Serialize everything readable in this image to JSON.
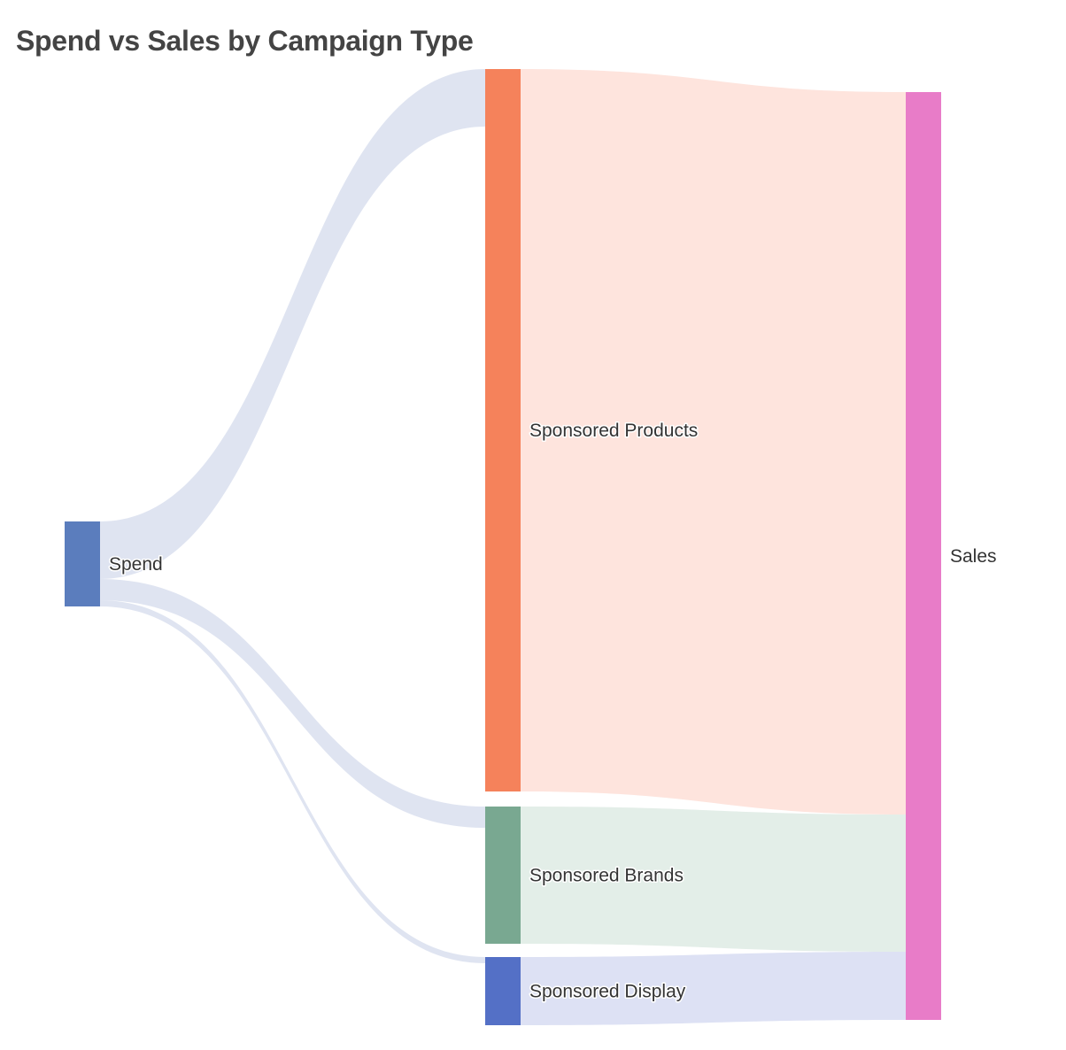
{
  "chart_data": {
    "type": "sankey",
    "title": "Spend vs Sales by Campaign Type",
    "nodes": [
      {
        "id": "spend",
        "label": "Spend",
        "color": "#5b7dbd"
      },
      {
        "id": "sp",
        "label": "Sponsored Products",
        "color": "#f5825b"
      },
      {
        "id": "sb",
        "label": "Sponsored Brands",
        "color": "#79a891"
      },
      {
        "id": "sd",
        "label": "Sponsored Display",
        "color": "#5470c6"
      },
      {
        "id": "sales",
        "label": "Sales",
        "color": "#e87cc8"
      }
    ],
    "links": [
      {
        "source": "spend",
        "target": "sp",
        "value": 65,
        "color": "#dfe4f1"
      },
      {
        "source": "spend",
        "target": "sb",
        "value": 24,
        "color": "#dfe4f1"
      },
      {
        "source": "spend",
        "target": "sd",
        "value": 7,
        "color": "#dfe4f1"
      },
      {
        "source": "sp",
        "target": "sales",
        "value": 816,
        "color": "#fee4dd"
      },
      {
        "source": "sb",
        "target": "sales",
        "value": 155,
        "color": "#e3eee8"
      },
      {
        "source": "sd",
        "target": "sales",
        "value": 77,
        "color": "#dde1f4"
      }
    ]
  }
}
